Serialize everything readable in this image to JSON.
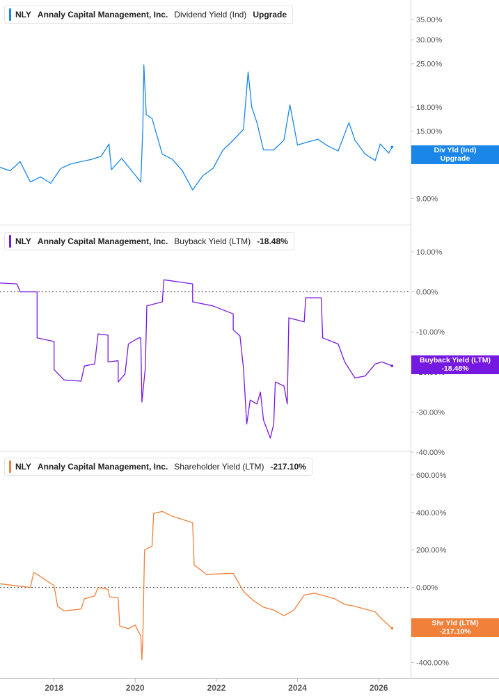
{
  "chart_data": [
    {
      "type": "line",
      "legend": {
        "ticker": "NLY",
        "company": "Annaly Capital Management, Inc.",
        "metric": "Dividend Yield (Ind)",
        "value": "Upgrade"
      },
      "color": "#1a86e8",
      "scale": "log",
      "ylim": [
        7.9,
        35
      ],
      "yticks": [
        "35.00%",
        "30.00%",
        "25.00%",
        "18.00%",
        "15.00%",
        "12.00%",
        "9.00%"
      ],
      "badge": {
        "label": "Div Yld (Ind)",
        "value": "Upgrade"
      },
      "series": [
        {
          "values": [
            [
              "2016-09-01",
              11.4
            ],
            [
              "2016-12-01",
              11.1
            ],
            [
              "2017-03-01",
              11.9
            ],
            [
              "2017-06-01",
              10.2
            ],
            [
              "2017-09-01",
              10.6
            ],
            [
              "2017-12-01",
              10.1
            ],
            [
              "2018-03-01",
              11.3
            ],
            [
              "2018-06-01",
              11.7
            ],
            [
              "2018-09-01",
              11.9
            ],
            [
              "2018-12-01",
              12.1
            ],
            [
              "2019-03-01",
              12.4
            ],
            [
              "2019-05-10",
              13.6
            ],
            [
              "2019-06-01",
              11.2
            ],
            [
              "2019-09-01",
              12.2
            ],
            [
              "2019-12-01",
              11.1
            ],
            [
              "2020-02-20",
              10.2
            ],
            [
              "2020-03-10",
              15.5
            ],
            [
              "2020-03-19",
              24.8
            ],
            [
              "2020-04-10",
              17.0
            ],
            [
              "2020-06-01",
              16.5
            ],
            [
              "2020-09-01",
              12.6
            ],
            [
              "2020-12-01",
              12.1
            ],
            [
              "2021-03-01",
              11.1
            ],
            [
              "2021-06-01",
              9.6
            ],
            [
              "2021-09-01",
              10.7
            ],
            [
              "2021-12-01",
              11.3
            ],
            [
              "2022-03-01",
              13.0
            ],
            [
              "2022-06-01",
              14.0
            ],
            [
              "2022-09-01",
              15.2
            ],
            [
              "2022-10-13",
              23.5
            ],
            [
              "2022-11-15",
              18.0
            ],
            [
              "2023-01-01",
              16.0
            ],
            [
              "2023-03-01",
              13.0
            ],
            [
              "2023-06-01",
              13.0
            ],
            [
              "2023-09-01",
              14.0
            ],
            [
              "2023-10-25",
              18.3
            ],
            [
              "2024-01-01",
              13.5
            ],
            [
              "2024-04-01",
              13.8
            ],
            [
              "2024-07-01",
              14.1
            ],
            [
              "2024-10-01",
              13.4
            ],
            [
              "2025-01-01",
              12.9
            ],
            [
              "2025-04-08",
              16.0
            ],
            [
              "2025-06-01",
              14.0
            ],
            [
              "2025-09-01",
              12.6
            ],
            [
              "2025-12-01",
              12.0
            ],
            [
              "2026-01-15",
              13.6
            ],
            [
              "2026-04-01",
              12.7
            ],
            [
              "2026-05-01",
              13.3
            ]
          ]
        }
      ]
    },
    {
      "type": "line",
      "legend": {
        "ticker": "NLY",
        "company": "Annaly Capital Management, Inc.",
        "metric": "Buyback Yield (LTM)",
        "value": "-18.48%"
      },
      "color": "#7619e0",
      "ylim": [
        -40,
        10
      ],
      "yticks": [
        "10.00%",
        "0.00%",
        "-10.00%",
        "-20.00%",
        "-30.00%",
        "-40.00%"
      ],
      "badge": {
        "label": "Buyback Yield (LTM)",
        "value": "-18.48%"
      },
      "series": [
        {
          "values": [
            [
              "2016-09-01",
              2.2
            ],
            [
              "2017-02-01",
              2.0
            ],
            [
              "2017-03-01",
              0.0
            ],
            [
              "2017-08-01",
              0.0
            ],
            [
              "2017-08-01",
              -11.5
            ],
            [
              "2018-01-01",
              -12.4
            ],
            [
              "2018-01-01",
              -19.4
            ],
            [
              "2018-04-01",
              -22.0
            ],
            [
              "2018-09-01",
              -22.3
            ],
            [
              "2018-10-01",
              -18.5
            ],
            [
              "2019-01-01",
              -18.0
            ],
            [
              "2019-02-01",
              -10.5
            ],
            [
              "2019-05-01",
              -10.8
            ],
            [
              "2019-05-01",
              -17.5
            ],
            [
              "2019-08-01",
              -17.2
            ],
            [
              "2019-08-01",
              -22.5
            ],
            [
              "2019-10-01",
              -20.5
            ],
            [
              "2019-11-01",
              -13.0
            ],
            [
              "2020-02-01",
              -11.5
            ],
            [
              "2020-02-20",
              -11.5
            ],
            [
              "2020-03-01",
              -27.5
            ],
            [
              "2020-04-01",
              -19.0
            ],
            [
              "2020-04-15",
              -3.5
            ],
            [
              "2020-09-01",
              -2.5
            ],
            [
              "2020-09-15",
              3.0
            ],
            [
              "2021-06-01",
              2.0
            ],
            [
              "2021-06-01",
              -2.5
            ],
            [
              "2021-12-01",
              -3.5
            ],
            [
              "2022-06-01",
              -5.5
            ],
            [
              "2022-06-01",
              -9.5
            ],
            [
              "2022-08-01",
              -11.0
            ],
            [
              "2022-09-01",
              -19.0
            ],
            [
              "2022-10-01",
              -33.0
            ],
            [
              "2022-11-01",
              -27.0
            ],
            [
              "2023-01-01",
              -28.0
            ],
            [
              "2023-02-01",
              -25.0
            ],
            [
              "2023-03-01",
              -32.0
            ],
            [
              "2023-05-01",
              -36.5
            ],
            [
              "2023-06-01",
              -33.0
            ],
            [
              "2023-06-15",
              -22.5
            ],
            [
              "2023-09-01",
              -23.5
            ],
            [
              "2023-10-01",
              -28.0
            ],
            [
              "2023-10-15",
              -6.5
            ],
            [
              "2024-03-01",
              -7.5
            ],
            [
              "2024-03-15",
              -1.5
            ],
            [
              "2024-08-01",
              -1.5
            ],
            [
              "2024-08-15",
              -11.5
            ],
            [
              "2025-01-01",
              -13.0
            ],
            [
              "2025-03-01",
              -17.5
            ],
            [
              "2025-06-01",
              -21.5
            ],
            [
              "2025-09-01",
              -21.0
            ],
            [
              "2025-12-01",
              -18.0
            ],
            [
              "2026-02-01",
              -17.5
            ],
            [
              "2026-05-01",
              -18.48
            ]
          ]
        }
      ]
    },
    {
      "type": "line",
      "legend": {
        "ticker": "NLY",
        "company": "Annaly Capital Management, Inc.",
        "metric": "Shareholder Yield (LTM)",
        "value": "-217.10%"
      },
      "color": "#f0803a",
      "ylim": [
        -420,
        640
      ],
      "yticks": [
        "600.00%",
        "400.00%",
        "200.00%",
        "0.00%",
        "-400.00%"
      ],
      "badge": {
        "label": "Shr Yld (LTM)",
        "value": "-217.10%"
      },
      "series": [
        {
          "values": [
            [
              "2016-09-01",
              20
            ],
            [
              "2017-06-01",
              0
            ],
            [
              "2017-07-01",
              80
            ],
            [
              "2017-08-01",
              70
            ],
            [
              "2018-01-01",
              10
            ],
            [
              "2018-02-01",
              -100
            ],
            [
              "2018-04-01",
              -125
            ],
            [
              "2018-09-01",
              -115
            ],
            [
              "2018-10-01",
              -60
            ],
            [
              "2019-01-01",
              -45
            ],
            [
              "2019-02-01",
              0
            ],
            [
              "2019-05-01",
              -10
            ],
            [
              "2019-05-15",
              -50
            ],
            [
              "2019-08-01",
              -55
            ],
            [
              "2019-08-15",
              -205
            ],
            [
              "2019-11-01",
              -220
            ],
            [
              "2020-01-01",
              -200
            ],
            [
              "2020-02-20",
              -260
            ],
            [
              "2020-03-01",
              -385
            ],
            [
              "2020-03-10",
              -260
            ],
            [
              "2020-03-25",
              200
            ],
            [
              "2020-06-01",
              220
            ],
            [
              "2020-06-15",
              395
            ],
            [
              "2020-09-01",
              405
            ],
            [
              "2020-12-01",
              380
            ],
            [
              "2021-06-01",
              345
            ],
            [
              "2021-06-15",
              120
            ],
            [
              "2021-10-01",
              70
            ],
            [
              "2022-06-01",
              75
            ],
            [
              "2022-09-01",
              -20
            ],
            [
              "2022-12-01",
              -70
            ],
            [
              "2023-03-01",
              -105
            ],
            [
              "2023-06-01",
              -120
            ],
            [
              "2023-09-01",
              -150
            ],
            [
              "2023-12-01",
              -120
            ],
            [
              "2024-03-01",
              -40
            ],
            [
              "2024-06-01",
              -30
            ],
            [
              "2024-09-01",
              -45
            ],
            [
              "2024-12-01",
              -60
            ],
            [
              "2025-03-01",
              -90
            ],
            [
              "2025-06-01",
              -100
            ],
            [
              "2025-09-01",
              -115
            ],
            [
              "2025-12-01",
              -130
            ],
            [
              "2026-02-01",
              -170
            ],
            [
              "2026-05-01",
              -217.1
            ]
          ]
        }
      ]
    }
  ],
  "x_axis": {
    "ticks": [
      "2018",
      "2020",
      "2022",
      "2024",
      "2026"
    ],
    "range": [
      "2016-09-01",
      "2026-10-15"
    ]
  }
}
